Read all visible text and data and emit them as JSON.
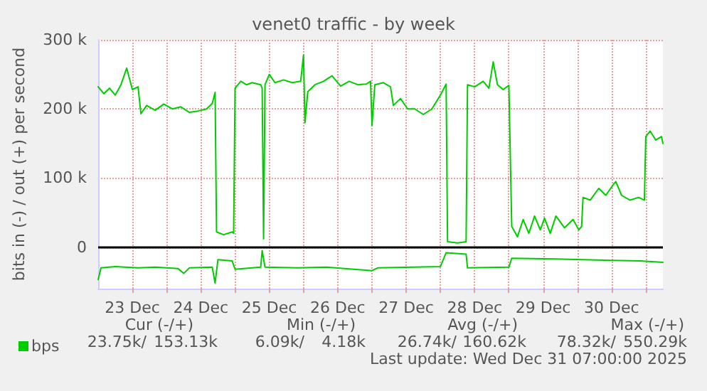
{
  "chart_data": {
    "type": "line",
    "title": "venet0 traffic - by week",
    "ylabel": "bits in (-) / out (+) per second",
    "xlim": [
      "2025-12-23T00:00",
      "2025-12-31T06:00"
    ],
    "xticks": [
      {
        "value": "2025-12-23T12:00",
        "label": "23 Dec"
      },
      {
        "value": "2025-12-24T00:00",
        "label": null
      },
      {
        "value": "2025-12-24T12:00",
        "label": "24 Dec"
      },
      {
        "value": "2025-12-25T00:00",
        "label": null
      },
      {
        "value": "2025-12-25T12:00",
        "label": "25 Dec"
      },
      {
        "value": "2025-12-26T00:00",
        "label": null
      },
      {
        "value": "2025-12-26T12:00",
        "label": "26 Dec"
      },
      {
        "value": "2025-12-27T00:00",
        "label": null
      },
      {
        "value": "2025-12-27T12:00",
        "label": "27 Dec"
      },
      {
        "value": "2025-12-28T00:00",
        "label": null
      },
      {
        "value": "2025-12-28T12:00",
        "label": "28 Dec"
      },
      {
        "value": "2025-12-29T00:00",
        "label": null
      },
      {
        "value": "2025-12-29T12:00",
        "label": "29 Dec"
      },
      {
        "value": "2025-12-30T00:00",
        "label": null
      },
      {
        "value": "2025-12-30T12:00",
        "label": "30 Dec"
      },
      {
        "value": "2025-12-31T00:00",
        "label": null
      }
    ],
    "ylim": [
      -60000,
      300000
    ],
    "yticks": [
      0,
      {
        "value": 100000,
        "label": "100 k"
      },
      {
        "value": 200000,
        "label": "200 k"
      },
      {
        "value": 300000,
        "label": "300 k"
      }
    ],
    "grid": true,
    "legend": "bottom left",
    "marker": "none",
    "line_style": "solid",
    "ref_lines": [
      {
        "axis": "y",
        "value": 0,
        "label": null,
        "color": "#000000"
      }
    ],
    "series": [
      {
        "name": "bps",
        "color": "#00cc00",
        "x": [
          "2025-12-23T00:00",
          "2025-12-23T02:00",
          "2025-12-23T04:00",
          "2025-12-23T06:00",
          "2025-12-23T08:00",
          "2025-12-23T10:00",
          "2025-12-23T12:00",
          "2025-12-23T14:00",
          "2025-12-23T15:00",
          "2025-12-23T17:00",
          "2025-12-23T20:00",
          "2025-12-23T23:00",
          "2025-12-24T02:00",
          "2025-12-24T05:00",
          "2025-12-24T08:00",
          "2025-12-24T11:00",
          "2025-12-24T14:00",
          "2025-12-24T16:00",
          "2025-12-24T17:00",
          "2025-12-24T17:30",
          "2025-12-24T20:00",
          "2025-12-24T23:00",
          "2025-12-24T23:30",
          "2025-12-25T00:00",
          "2025-12-25T02:00",
          "2025-12-25T04:00",
          "2025-12-25T06:00",
          "2025-12-25T09:00",
          "2025-12-25T09:30",
          "2025-12-25T10:00",
          "2025-12-25T10:30",
          "2025-12-25T12:00",
          "2025-12-25T14:00",
          "2025-12-25T17:00",
          "2025-12-25T20:00",
          "2025-12-25T23:00",
          "2025-12-26T00:00",
          "2025-12-26T00:30",
          "2025-12-26T01:30",
          "2025-12-26T04:00",
          "2025-12-26T07:00",
          "2025-12-26T10:00",
          "2025-12-26T13:00",
          "2025-12-26T16:00",
          "2025-12-26T19:00",
          "2025-12-26T22:00",
          "2025-12-26T23:30",
          "2025-12-27T00:00",
          "2025-12-27T01:00",
          "2025-12-27T04:00",
          "2025-12-27T06:30",
          "2025-12-27T07:30",
          "2025-12-27T10:00",
          "2025-12-27T12:30",
          "2025-12-27T15:00",
          "2025-12-27T18:00",
          "2025-12-27T21:00",
          "2025-12-28T00:00",
          "2025-12-28T02:00",
          "2025-12-28T02:30",
          "2025-12-28T06:00",
          "2025-12-28T09:00",
          "2025-12-28T09:30",
          "2025-12-28T12:00",
          "2025-12-28T15:00",
          "2025-12-28T17:00",
          "2025-12-28T18:30",
          "2025-12-28T20:00",
          "2025-12-28T22:00",
          "2025-12-29T00:00",
          "2025-12-29T01:00",
          "2025-12-29T03:00",
          "2025-12-29T05:00",
          "2025-12-29T07:00",
          "2025-12-29T09:00",
          "2025-12-29T11:00",
          "2025-12-29T12:30",
          "2025-12-29T14:30",
          "2025-12-29T16:30",
          "2025-12-29T19:30",
          "2025-12-29T22:30",
          "2025-12-30T00:30",
          "2025-12-30T01:30",
          "2025-12-30T02:00",
          "2025-12-30T04:30",
          "2025-12-30T07:30",
          "2025-12-30T10:00",
          "2025-12-30T12:30",
          "2025-12-30T13:30",
          "2025-12-30T15:30",
          "2025-12-30T18:30",
          "2025-12-30T21:30",
          "2025-12-30T23:30",
          "2025-12-31T00:00",
          "2025-12-31T01:30",
          "2025-12-31T03:30",
          "2025-12-31T05:30",
          "2025-12-31T06:00"
        ],
        "values": [
          232000,
          222000,
          230000,
          220000,
          235000,
          259000,
          228000,
          232000,
          193000,
          205000,
          198000,
          207000,
          200000,
          203000,
          195000,
          197000,
          200000,
          208000,
          224000,
          22000,
          18000,
          22000,
          20000,
          230000,
          240000,
          235000,
          238000,
          235000,
          230000,
          12000,
          235000,
          250000,
          238000,
          242000,
          238000,
          240000,
          278000,
          180000,
          225000,
          235000,
          240000,
          248000,
          233000,
          240000,
          235000,
          236000,
          240000,
          176000,
          235000,
          238000,
          232000,
          205000,
          215000,
          200000,
          200000,
          192000,
          200000,
          220000,
          236000,
          8000,
          6000,
          8000,
          235000,
          232000,
          240000,
          230000,
          268000,
          235000,
          228000,
          234000,
          30000,
          15000,
          40000,
          20000,
          45000,
          25000,
          42000,
          20000,
          45000,
          28000,
          40000,
          25000,
          30000,
          72000,
          68000,
          85000,
          75000,
          90000,
          95000,
          75000,
          68000,
          72000,
          68000,
          160000,
          168000,
          155000,
          160000,
          150000
        ]
      },
      {
        "color": "#00cc00",
        "x": [
          "2025-12-23T00:00",
          "2025-12-23T01:00",
          "2025-12-23T06:00",
          "2025-12-23T14:00",
          "2025-12-23T20:00",
          "2025-12-24T04:00",
          "2025-12-24T06:00",
          "2025-12-24T08:00",
          "2025-12-24T16:00",
          "2025-12-24T17:00",
          "2025-12-24T18:00",
          "2025-12-24T23:00",
          "2025-12-25T00:00",
          "2025-12-25T09:00",
          "2025-12-25T09:30",
          "2025-12-25T10:30",
          "2025-12-25T22:00",
          "2025-12-26T08:00",
          "2025-12-27T00:00",
          "2025-12-27T02:00",
          "2025-12-28T00:00",
          "2025-12-28T02:00",
          "2025-12-28T09:00",
          "2025-12-28T09:30",
          "2025-12-29T00:00",
          "2025-12-29T01:00",
          "2025-12-29T16:00",
          "2025-12-30T02:00",
          "2025-12-30T12:00",
          "2025-12-30T22:00",
          "2025-12-31T06:00"
        ],
        "values": [
          -47000,
          -30000,
          -28000,
          -30000,
          -29000,
          -31000,
          -38000,
          -30000,
          -29000,
          -52000,
          -18000,
          -20000,
          -32000,
          -29000,
          -5000,
          -29000,
          -30000,
          -29000,
          -34000,
          -30000,
          -28000,
          -8000,
          -10000,
          -30000,
          -29000,
          -16000,
          -17000,
          -18000,
          -19000,
          -20000,
          -22000
        ]
      }
    ],
    "annotations": [
      "Cur (-/+)",
      "Min (-/+)",
      "Avg (-/+)",
      "Max (-/+)",
      "23.75k/",
      "153.13k",
      "6.09k/",
      "4.18k",
      "26.74k/",
      "160.62k",
      "78.32k/",
      "550.29k",
      "Last update: Wed Dec 31 07:00:00 2025"
    ]
  }
}
